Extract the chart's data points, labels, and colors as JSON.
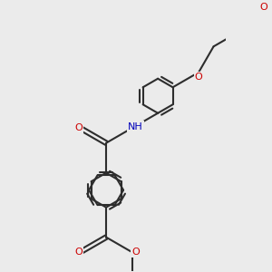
{
  "background_color": "#ebebeb",
  "bond_color": "#2d2d2d",
  "oxygen_color": "#cc0000",
  "nitrogen_color": "#0000bb",
  "line_width": 1.5,
  "figsize": [
    3.0,
    3.0
  ],
  "dpi": 100,
  "xlim": [
    -0.5,
    5.5
  ],
  "ylim": [
    -5.5,
    3.5
  ]
}
